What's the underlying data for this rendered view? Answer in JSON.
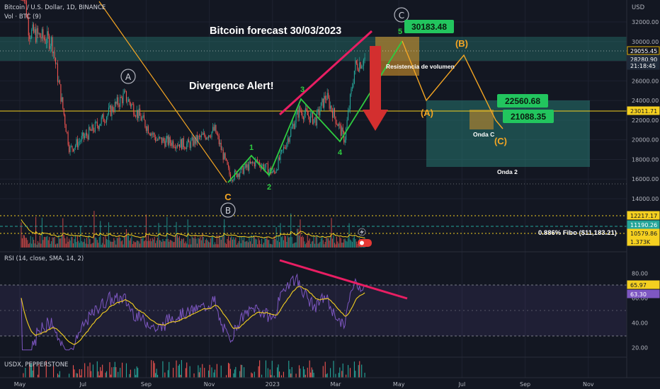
{
  "header": {
    "symbol_line": "Bitcoin / U.S. Dollar, 1D, BINANCE",
    "volume_line": "Vol · BTC (9)",
    "rsi_line": "RSI (14, close, SMA, 14, 2)",
    "usdx_line": "USDX, PEPPERSTONE",
    "currency": "USD"
  },
  "annotations": {
    "title": "Bitcoin forecast 30/03/2023",
    "divergence": "Divergence Alert!",
    "resistance": "Resistencia de volumen",
    "onda_c": "Onda C",
    "onda_2": "Onda 2",
    "fibo": "0.886% Fibo ($11,183.21)",
    "wave_A_circ": "A",
    "wave_B_circ": "B",
    "wave_C_circ": "C",
    "wave_C_low": "C",
    "w1": "1",
    "w2": "2",
    "w3": "3",
    "w4": "4",
    "w5": "5",
    "proj_A": "(A)",
    "proj_B": "(B)",
    "proj_C": "(C)",
    "target_30183": "30183.48",
    "target_22560": "22560.68",
    "target_21088": "21088.35"
  },
  "axis": {
    "price_ticks": [
      "32000.00",
      "30000.00",
      "28000.00",
      "26000.00",
      "24000.00",
      "22000.00",
      "20000.00",
      "18000.00",
      "16000.00",
      "14000.00"
    ],
    "rsi_ticks": [
      "80.00",
      "60.00",
      "40.00",
      "20.00"
    ],
    "time_ticks": [
      "May",
      "Jul",
      "Sep",
      "Nov",
      "2023",
      "Mar",
      "May",
      "Jul",
      "Sep",
      "Nov"
    ],
    "price_labels": [
      {
        "text": "29055.45",
        "color": "#ffffff",
        "bg": "#131722",
        "border": "#e0b000"
      },
      {
        "text": "28280.90",
        "color": "#ffffff",
        "bg": "#1f2a3a",
        "border": "#1f2a3a"
      },
      {
        "text": "21:18:45",
        "color": "#ffffff",
        "bg": "#1f2a3a",
        "border": "#1f2a3a"
      },
      {
        "text": "23011.71",
        "color": "#131722",
        "bg": "#f5d020",
        "border": "#f5d020"
      },
      {
        "text": "12217.17",
        "color": "#131722",
        "bg": "#f5d020",
        "border": "#f5d020"
      },
      {
        "text": "11190.26",
        "color": "#ffffff",
        "bg": "#26a69a",
        "border": "#26a69a"
      },
      {
        "text": "10579.86",
        "color": "#131722",
        "bg": "#f5d020",
        "border": "#f5d020"
      },
      {
        "text": "1.373K",
        "color": "#131722",
        "bg": "#f5d020",
        "border": "#f5d020"
      },
      {
        "text": "65.97",
        "color": "#131722",
        "bg": "#f5d020",
        "border": "#f5d020"
      },
      {
        "text": "63.30",
        "color": "#ffffff",
        "bg": "#7e57c2",
        "border": "#7e57c2"
      }
    ]
  },
  "colors": {
    "bg": "#131722",
    "up": "#26a69a",
    "down": "#ef5350",
    "wave": "#2ecc40",
    "projection": "#f5a623",
    "diverge": "#e91e63",
    "rsi": "#7e57c2",
    "rsi_ma": "#f5d020",
    "zone_teal": "#2a8c80",
    "zone_orange": "#c58a2b"
  },
  "chart_data": {
    "type": "candlestick",
    "title": "Bitcoin forecast 30/03/2023",
    "symbol": "BTCUSD",
    "interval": "1D",
    "x_range": [
      "2022-05",
      "2023-11"
    ],
    "ylim": [
      13500,
      33000
    ],
    "close_path": {
      "dates": [
        "2022-05-01",
        "2022-05-10",
        "2022-06-01",
        "2022-06-18",
        "2022-07-10",
        "2022-08-10",
        "2022-09-10",
        "2022-10-10",
        "2022-11-05",
        "2022-11-20",
        "2022-12-15",
        "2023-01-01",
        "2023-01-25",
        "2023-02-10",
        "2023-02-20",
        "2023-03-10",
        "2023-03-20",
        "2023-03-30"
      ],
      "values": [
        38000,
        31000,
        30000,
        19000,
        21000,
        24500,
        20000,
        19500,
        21000,
        16200,
        17800,
        16600,
        23000,
        22000,
        24500,
        20000,
        27500,
        28280
      ]
    },
    "levels": {
      "current_price": 28280.9,
      "resistance": 29055.45,
      "support": 23011.71,
      "fibo_0886": 11183.21,
      "targets": [
        30183.48,
        22560.68,
        21088.35
      ]
    },
    "rsi": {
      "length": 14,
      "ma": 14,
      "last": 63.3,
      "ma_last": 65.97,
      "levels": [
        70,
        30
      ],
      "ylim": [
        15,
        95
      ]
    },
    "volume_levels": [
      12217.17,
      11190.26,
      10579.86
    ]
  }
}
